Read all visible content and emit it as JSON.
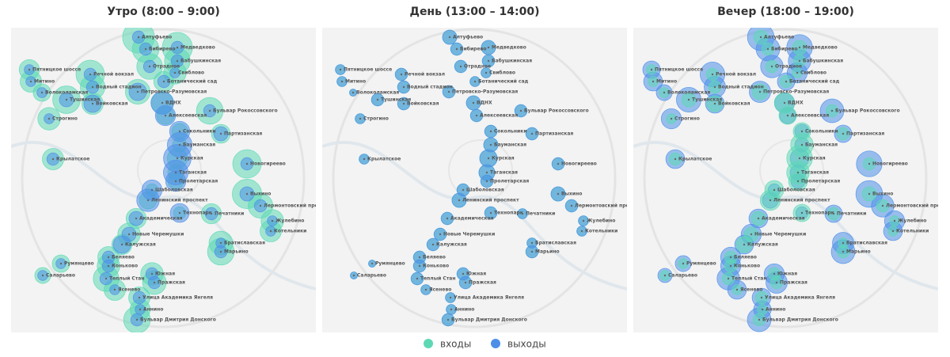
{
  "panels": [
    {
      "title": "Утро (8:00 – 9:00)",
      "entries": [
        20,
        18,
        14,
        13,
        13,
        10,
        8,
        8,
        9,
        16,
        12,
        6,
        12,
        15,
        9,
        10,
        14,
        6,
        10,
        5,
        7,
        4,
        9,
        16,
        8,
        5,
        5,
        3,
        6,
        17,
        12,
        10,
        9,
        8,
        3,
        8,
        10,
        8,
        11,
        14,
        9,
        10,
        6,
        5,
        13,
        10,
        11,
        9,
        9,
        8,
        14
      ],
      "exits": [
        3,
        3,
        3,
        3,
        3,
        2,
        3,
        2,
        2,
        3,
        3,
        2,
        6,
        4,
        6,
        10,
        3,
        8,
        2,
        8,
        4,
        12,
        3,
        3,
        15,
        12,
        8,
        8,
        10,
        4,
        3,
        2,
        2,
        4,
        7,
        3,
        4,
        6,
        2,
        3,
        3,
        3,
        2,
        2,
        3,
        3,
        3,
        2,
        3,
        2,
        3
      ]
    },
    {
      "title": "День (13:00 – 14:00)",
      "entries": [
        4,
        4,
        3,
        3,
        3,
        2,
        2,
        2,
        2,
        3,
        3,
        1,
        3,
        3,
        3,
        4,
        3,
        3,
        2,
        3,
        3,
        4,
        2,
        3,
        6,
        5,
        3,
        3,
        4,
        4,
        3,
        2,
        2,
        3,
        3,
        2,
        3,
        3,
        2,
        3,
        3,
        3,
        1,
        1,
        3,
        3,
        3,
        2,
        2,
        2,
        3
      ],
      "exits": [
        4,
        4,
        3,
        3,
        3,
        2,
        2,
        2,
        2,
        3,
        3,
        1,
        3,
        3,
        3,
        4,
        3,
        3,
        2,
        3,
        3,
        4,
        2,
        3,
        6,
        5,
        3,
        3,
        4,
        4,
        3,
        2,
        2,
        3,
        3,
        2,
        3,
        3,
        2,
        3,
        3,
        3,
        1,
        1,
        3,
        3,
        3,
        2,
        2,
        2,
        3
      ]
    },
    {
      "title": "Вечер (18:00 – 19:00)",
      "entries": [
        4,
        4,
        3,
        3,
        3,
        2,
        3,
        2,
        2,
        3,
        3,
        2,
        5,
        4,
        5,
        8,
        3,
        6,
        2,
        6,
        3,
        10,
        3,
        3,
        13,
        10,
        7,
        7,
        8,
        4,
        3,
        2,
        2,
        4,
        6,
        3,
        4,
        5,
        2,
        3,
        3,
        3,
        2,
        2,
        3,
        3,
        3,
        2,
        3,
        2,
        3
      ],
      "exits": [
        14,
        13,
        11,
        10,
        10,
        8,
        6,
        6,
        7,
        12,
        9,
        5,
        9,
        12,
        7,
        8,
        11,
        5,
        8,
        4,
        6,
        4,
        7,
        13,
        7,
        5,
        4,
        3,
        5,
        14,
        10,
        8,
        7,
        7,
        3,
        6,
        8,
        7,
        9,
        11,
        8,
        8,
        5,
        4,
        10,
        8,
        9,
        7,
        7,
        6,
        11
      ]
    }
  ],
  "stations": [
    "Алтуфьево",
    "Медведково",
    "Бибирево",
    "Бабушкинская",
    "Отрадное",
    "Свиблово",
    "Ботанический сад",
    "Пятницкое шоссе",
    "Митино",
    "Речной вокзал",
    "Водный стадион",
    "Волоколамская",
    "Петровско-Разумовская",
    "Тушинская",
    "Войковская",
    "ВДНХ",
    "Бульвар Рокоссовского",
    "Алексеевская",
    "Строгино",
    "Сокольники",
    "Партизанская",
    "Бауманская",
    "Крылатское",
    "Новогиреево",
    "Курская",
    "Таганская",
    "Пролетарская",
    "Шаболовская",
    "Ленинский проспект",
    "Выхино",
    "Лермонтовский проспект",
    "Жулебино",
    "Котельники",
    "Академическая",
    "Технопарк",
    "Печатники",
    "Новые Черемушки",
    "Калужская",
    "Братиславская",
    "Марьино",
    "Беляево",
    "Коньково",
    "Румянцево",
    "Саларьево",
    "Теплый Стан",
    "Южная",
    "Пражская",
    "Ясенево",
    "Улица Академика Янгеля",
    "Аннино",
    "Бульвар Дмитрия Донского"
  ],
  "legend": {
    "series": [
      {
        "name": "входы",
        "color": "#5dd8b4"
      },
      {
        "name": "выходы",
        "color": "#4d8fe8"
      }
    ]
  }
}
